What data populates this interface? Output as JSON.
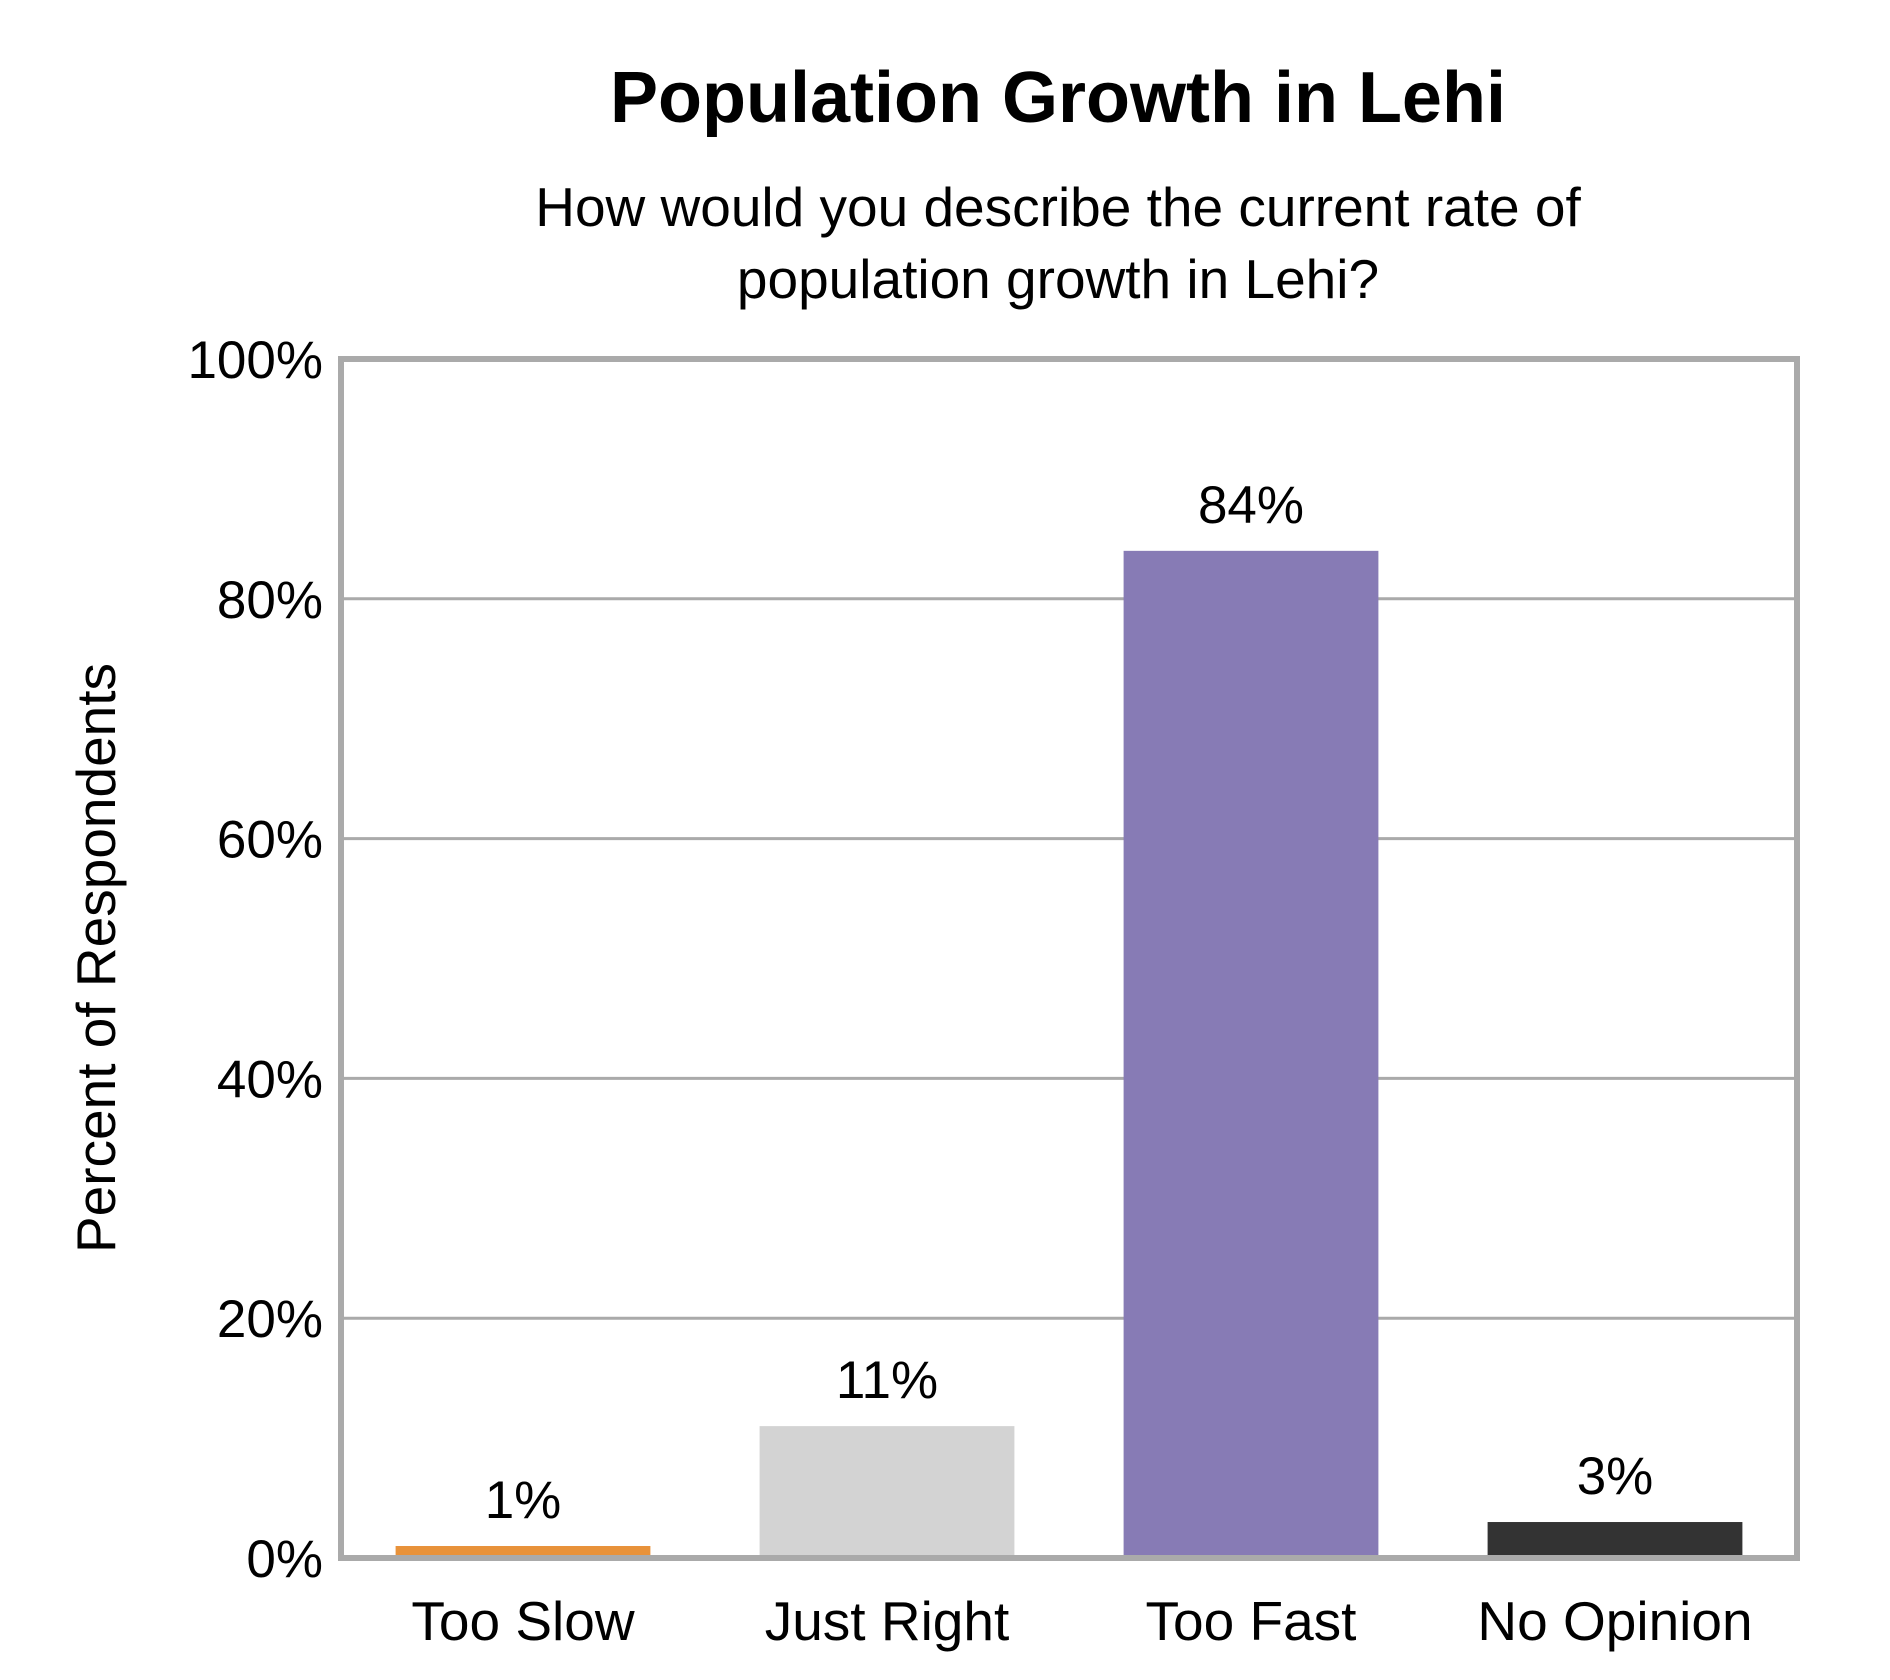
{
  "chart_data": {
    "type": "bar",
    "title": "Population Growth in Lehi",
    "subtitle_lines": [
      "How would you describe the current rate of",
      "population growth in Lehi?"
    ],
    "xlabel": "",
    "ylabel": "Percent of Respondents",
    "categories": [
      "Too Slow",
      "Just Right",
      "Too Fast",
      "No Opinion"
    ],
    "values": [
      1,
      11,
      84,
      3
    ],
    "data_labels": [
      "1%",
      "11%",
      "84%",
      "3%"
    ],
    "colors": [
      "#E8923A",
      "#D3D3D3",
      "#877BB5",
      "#333333"
    ],
    "ylim": [
      0,
      100
    ],
    "yticks": [
      0,
      20,
      40,
      60,
      80,
      100
    ],
    "ytick_labels": [
      "0%",
      "20%",
      "40%",
      "60%",
      "80%",
      "100%"
    ],
    "grid": true,
    "grid_color": "#AAAAAA",
    "legend": "none"
  }
}
